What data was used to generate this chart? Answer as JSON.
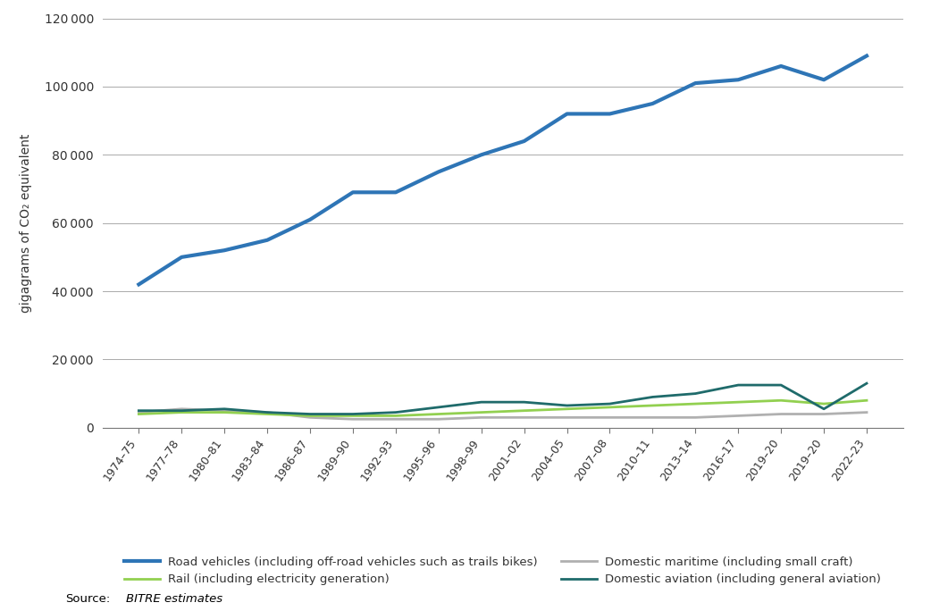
{
  "x_labels": [
    "1974–75",
    "1977–78",
    "1980–81",
    "1983–84",
    "1986–87",
    "1989–90",
    "1992–93",
    "1995–96",
    "1998–99",
    "2001–02",
    "2004–05",
    "2007–08",
    "2010–11",
    "2013–14",
    "2016–17",
    "2019–20",
    "2019–20",
    "2022–23"
  ],
  "road": [
    42000,
    50000,
    52000,
    55000,
    61000,
    69000,
    69000,
    75000,
    80000,
    84000,
    92000,
    92000,
    95000,
    101000,
    102000,
    106000,
    102000,
    109000
  ],
  "rail": [
    4000,
    4500,
    4500,
    4000,
    3500,
    3500,
    3500,
    4000,
    4500,
    5000,
    5500,
    6000,
    6500,
    7000,
    7500,
    8000,
    7000,
    8000
  ],
  "maritime": [
    4500,
    5500,
    5000,
    4500,
    3000,
    2500,
    2500,
    2500,
    3000,
    3000,
    3000,
    3000,
    3000,
    3000,
    3500,
    4000,
    4000,
    4500
  ],
  "aviation": [
    5000,
    5000,
    5500,
    4500,
    4000,
    4000,
    4500,
    6000,
    7500,
    7500,
    6500,
    7000,
    9000,
    10000,
    12500,
    12500,
    5500,
    13000
  ],
  "road_color": "#2e75b6",
  "rail_color": "#92d050",
  "maritime_color": "#b0b0b0",
  "aviation_color": "#1f6b6b",
  "ylabel": "gigagrams of CO₂ equivalent",
  "ylim": [
    0,
    120000
  ],
  "yticks": [
    0,
    20000,
    40000,
    60000,
    80000,
    100000,
    120000
  ],
  "legend_road": "Road vehicles (including off-road vehicles such as trails bikes)",
  "legend_rail": "Rail (including electricity generation)",
  "legend_maritime": "Domestic maritime (including small craft)",
  "legend_aviation": "Domestic aviation (including general aviation)",
  "source_label": "Source:",
  "source_text": "BITRE estimates",
  "line_width": 2.0
}
